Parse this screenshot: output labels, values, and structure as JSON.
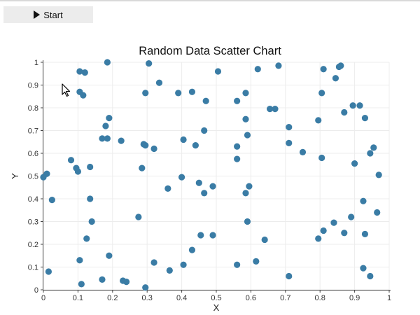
{
  "toolbar": {
    "start_label": "Start",
    "start_icon": "play-icon"
  },
  "chart_data": {
    "type": "scatter",
    "title": "Random Data Scatter Chart",
    "xlabel": "X",
    "ylabel": "Y",
    "xlim": [
      0,
      1
    ],
    "ylim": [
      0,
      1
    ],
    "xticks": [
      "0",
      "0.1",
      "0.2",
      "0.3",
      "0.4",
      "0.5",
      "0.6",
      "0.7",
      "0.8",
      "0.9",
      "1"
    ],
    "yticks": [
      "0",
      "0.1",
      "0.2",
      "0.3",
      "0.4",
      "0.5",
      "0.6",
      "0.7",
      "0.8",
      "0.9",
      "1"
    ],
    "grid": true,
    "marker_color": "#3a7ca5",
    "points": [
      [
        0.105,
        0.96
      ],
      [
        0.12,
        0.955
      ],
      [
        0.185,
        1.0
      ],
      [
        0.305,
        0.995
      ],
      [
        0.335,
        0.91
      ],
      [
        0.295,
        0.865
      ],
      [
        0.105,
        0.87
      ],
      [
        0.115,
        0.855
      ],
      [
        0.39,
        0.865
      ],
      [
        0.43,
        0.87
      ],
      [
        0.47,
        0.83
      ],
      [
        0.505,
        0.96
      ],
      [
        0.56,
        0.83
      ],
      [
        0.585,
        0.865
      ],
      [
        0.62,
        0.97
      ],
      [
        0.655,
        0.795
      ],
      [
        0.67,
        0.795
      ],
      [
        0.68,
        0.985
      ],
      [
        0.81,
        0.97
      ],
      [
        0.845,
        0.93
      ],
      [
        0.855,
        0.98
      ],
      [
        0.86,
        0.985
      ],
      [
        0.805,
        0.865
      ],
      [
        0.895,
        0.81
      ],
      [
        0.915,
        0.81
      ],
      [
        0.87,
        0.78
      ],
      [
        0.93,
        0.755
      ],
      [
        0.795,
        0.745
      ],
      [
        0.71,
        0.715
      ],
      [
        0.585,
        0.75
      ],
      [
        0.59,
        0.68
      ],
      [
        0.465,
        0.7
      ],
      [
        0.19,
        0.755
      ],
      [
        0.18,
        0.72
      ],
      [
        0.17,
        0.665
      ],
      [
        0.185,
        0.665
      ],
      [
        0.225,
        0.655
      ],
      [
        0.29,
        0.64
      ],
      [
        0.295,
        0.635
      ],
      [
        0.32,
        0.62
      ],
      [
        0.405,
        0.66
      ],
      [
        0.44,
        0.635
      ],
      [
        0.56,
        0.63
      ],
      [
        0.56,
        0.575
      ],
      [
        0.71,
        0.645
      ],
      [
        0.75,
        0.605
      ],
      [
        0.805,
        0.58
      ],
      [
        0.9,
        0.555
      ],
      [
        0.955,
        0.625
      ],
      [
        0.945,
        0.6
      ],
      [
        0.97,
        0.505
      ],
      [
        0.08,
        0.57
      ],
      [
        0.095,
        0.535
      ],
      [
        0.1,
        0.52
      ],
      [
        0.135,
        0.54
      ],
      [
        0.285,
        0.535
      ],
      [
        0.4,
        0.495
      ],
      [
        0.36,
        0.445
      ],
      [
        0.45,
        0.47
      ],
      [
        0.465,
        0.425
      ],
      [
        0.49,
        0.455
      ],
      [
        0.585,
        0.425
      ],
      [
        0.595,
        0.455
      ],
      [
        0.0,
        0.495
      ],
      [
        0.01,
        0.51
      ],
      [
        0.025,
        0.395
      ],
      [
        0.135,
        0.4
      ],
      [
        0.14,
        0.3
      ],
      [
        0.275,
        0.32
      ],
      [
        0.59,
        0.3
      ],
      [
        0.84,
        0.295
      ],
      [
        0.89,
        0.32
      ],
      [
        0.925,
        0.39
      ],
      [
        0.965,
        0.34
      ],
      [
        0.81,
        0.26
      ],
      [
        0.795,
        0.225
      ],
      [
        0.87,
        0.25
      ],
      [
        0.93,
        0.245
      ],
      [
        0.125,
        0.225
      ],
      [
        0.19,
        0.15
      ],
      [
        0.105,
        0.13
      ],
      [
        0.17,
        0.045
      ],
      [
        0.11,
        0.025
      ],
      [
        0.015,
        0.08
      ],
      [
        0.23,
        0.04
      ],
      [
        0.24,
        0.035
      ],
      [
        0.295,
        0.01
      ],
      [
        0.32,
        0.12
      ],
      [
        0.365,
        0.085
      ],
      [
        0.405,
        0.11
      ],
      [
        0.43,
        0.175
      ],
      [
        0.455,
        0.24
      ],
      [
        0.49,
        0.24
      ],
      [
        0.56,
        0.11
      ],
      [
        0.615,
        0.125
      ],
      [
        0.64,
        0.22
      ],
      [
        0.71,
        0.06
      ],
      [
        0.925,
        0.095
      ],
      [
        0.945,
        0.06
      ]
    ]
  }
}
